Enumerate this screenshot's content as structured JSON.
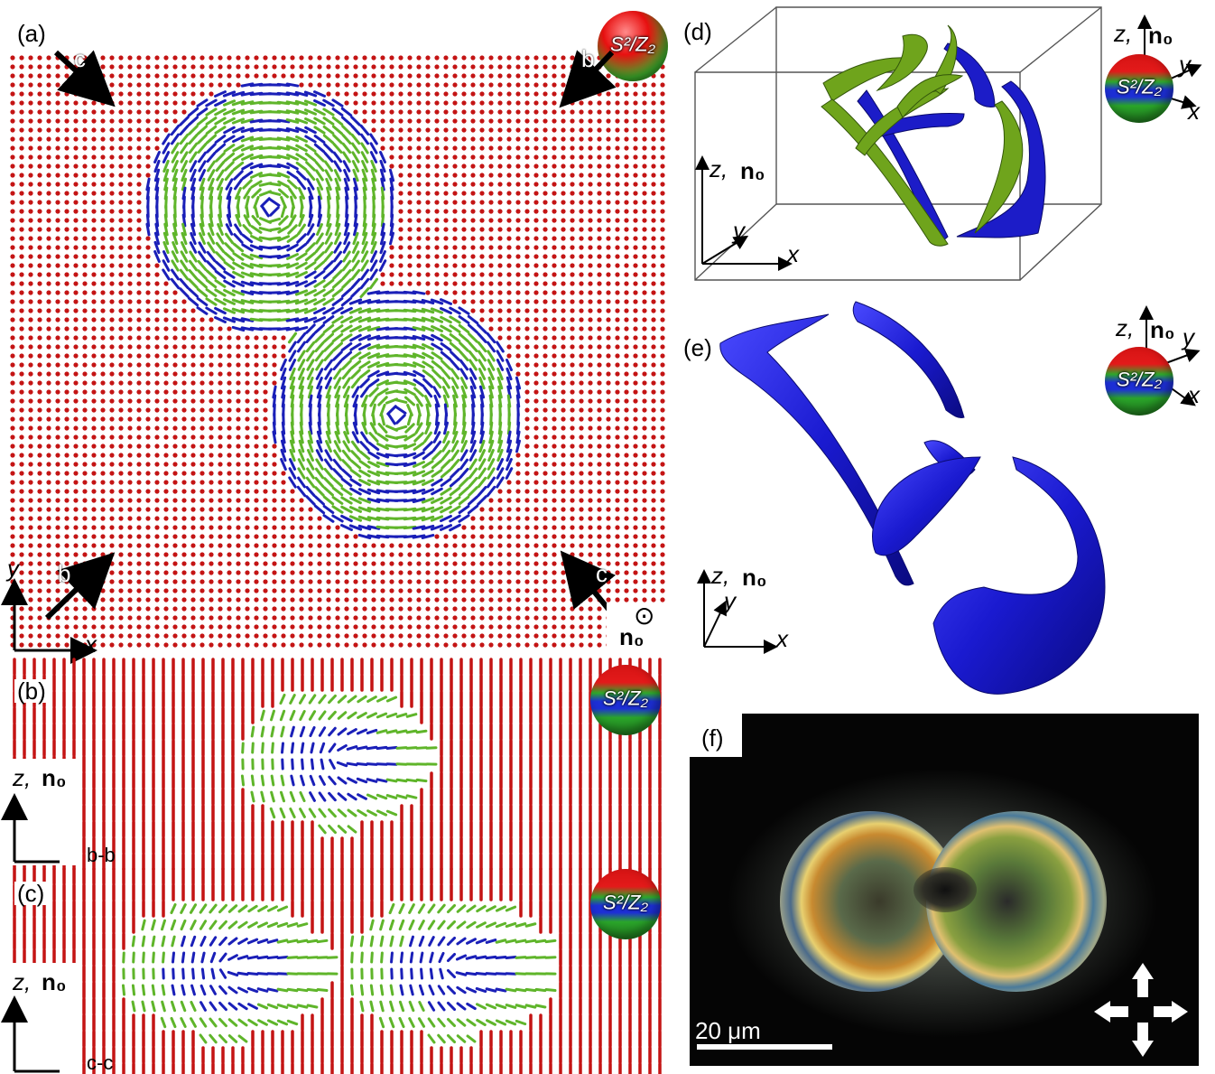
{
  "panels": {
    "a": {
      "label": "(a)",
      "sphere": "S²/Z₂",
      "arrow_c1": "c",
      "arrow_b1": "b",
      "arrow_b2": "b",
      "arrow_c2": "c",
      "axis_y": "y",
      "axis_x": "x",
      "n0": "n₀",
      "n0_symbol": "⊙"
    },
    "b": {
      "label": "(b)",
      "sphere": "S²/Z₂",
      "axis_z": "z,",
      "n0": "n₀",
      "section": "b-b"
    },
    "c": {
      "label": "(c)",
      "sphere": "S²/Z₂",
      "axis_z": "z,",
      "n0": "n₀",
      "section": "c-c"
    },
    "d": {
      "label": "(d)",
      "sphere": "S²/Z₂",
      "axis_z": "z,",
      "n0": "n₀",
      "axis_y": "y",
      "axis_x": "x",
      "inset_z": "z,",
      "inset_n0": "n₀",
      "inset_y": "y",
      "inset_x": "x"
    },
    "e": {
      "label": "(e)",
      "sphere": "S²/Z₂",
      "axis_z": "z,",
      "n0": "n₀",
      "axis_y": "y",
      "axis_x": "x",
      "inset_z": "z,",
      "inset_n0": "n₀",
      "inset_y": "y",
      "inset_x": "x"
    },
    "f": {
      "label": "(f)",
      "scalebar": "20 μm"
    }
  },
  "colors": {
    "red": "#c41414",
    "green": "#5fb52a",
    "blue": "#1a1fb8",
    "surface_green": "#6a9a1a",
    "surface_blue": "#1c1cc8"
  }
}
